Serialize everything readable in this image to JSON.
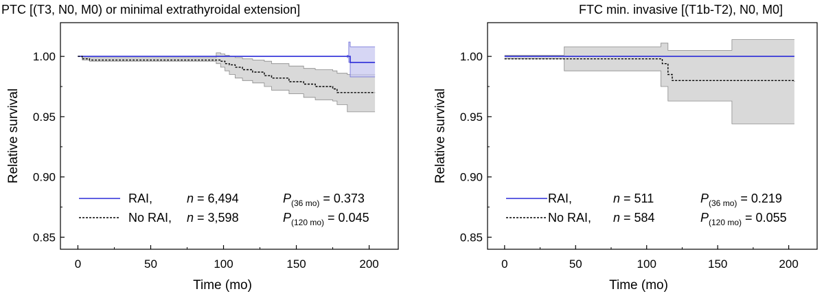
{
  "chart_data": [
    {
      "type": "line",
      "title": "PTC [(T3, N0, M0) or minimal extrathyroidal extension]",
      "xlabel": "Time (mo)",
      "ylabel": "Relative survival",
      "xlim": [
        -12,
        220
      ],
      "ylim": [
        0.84,
        1.028
      ],
      "xticks": [
        "0",
        "50",
        "100",
        "150",
        "200"
      ],
      "yticks": [
        "0.85",
        "0.90",
        "0.95",
        "1.00"
      ],
      "colors": {
        "rai": "#2b2bd8",
        "rai_band": "#c8c8f0",
        "norai": "#000000",
        "norai_band": "#d9d9d9"
      },
      "series": [
        {
          "name": "RAI",
          "style": "solid",
          "x": [
            0,
            186,
            187,
            204
          ],
          "y": [
            1.0,
            1.0,
            0.995,
            0.995
          ],
          "band": {
            "x": [
              0,
              185,
              185,
              186,
              187,
              204
            ],
            "lower": [
              1.0,
              1.0,
              0.999,
              0.995,
              0.983,
              0.983
            ],
            "upper": [
              1.0,
              1.0,
              1.001,
              1.012,
              1.008,
              1.008
            ]
          }
        },
        {
          "name": "No RAI",
          "style": "dashed",
          "x": [
            0,
            3,
            8,
            95,
            98,
            101,
            104,
            108,
            113,
            120,
            128,
            133,
            145,
            155,
            163,
            175,
            178,
            183,
            204
          ],
          "y": [
            1.0,
            0.998,
            0.997,
            0.997,
            0.996,
            0.994,
            0.993,
            0.991,
            0.989,
            0.987,
            0.984,
            0.982,
            0.979,
            0.977,
            0.975,
            0.973,
            0.97,
            0.97,
            0.97
          ],
          "band": {
            "x": [
              0,
              3,
              8,
              90,
              95,
              98,
              101,
              104,
              108,
              113,
              120,
              128,
              133,
              145,
              155,
              163,
              175,
              178,
              185,
              204
            ],
            "lower": [
              1.0,
              0.997,
              0.996,
              0.996,
              0.994,
              0.991,
              0.988,
              0.985,
              0.982,
              0.98,
              0.978,
              0.975,
              0.972,
              0.969,
              0.966,
              0.964,
              0.963,
              0.96,
              0.954,
              0.954
            ],
            "upper": [
              1.0,
              0.999,
              0.999,
              0.999,
              1.003,
              1.002,
              1.001,
              1.0,
              0.999,
              0.998,
              0.997,
              0.996,
              0.994,
              0.992,
              0.99,
              0.989,
              0.988,
              0.986,
              0.985,
              0.985
            ]
          }
        }
      ],
      "legend": [
        {
          "label": "RAI,",
          "n_label": "n",
          "n_value": " = 6,494",
          "p_label": "P",
          "p_sub": "(36 mo)",
          "p_value": " = 0.373"
        },
        {
          "label": "No RAI,",
          "n_label": "n",
          "n_value": " = 3,598",
          "p_label": "P",
          "p_sub": "(120 mo)",
          "p_value": " = 0.045"
        }
      ]
    },
    {
      "type": "line",
      "title": "FTC min. invasive [(T1b-T2), N0, M0]",
      "xlabel": "Time (mo)",
      "ylabel": "Relative survival",
      "xlim": [
        -12,
        220
      ],
      "ylim": [
        0.84,
        1.028
      ],
      "xticks": [
        "0",
        "50",
        "100",
        "150",
        "200"
      ],
      "yticks": [
        "0.85",
        "0.90",
        "0.95",
        "1.00"
      ],
      "colors": {
        "rai": "#2b2bd8",
        "rai_band": "#c8c8f0",
        "norai": "#000000",
        "norai_band": "#d9d9d9"
      },
      "series": [
        {
          "name": "RAI",
          "style": "solid",
          "x": [
            0,
            204
          ],
          "y": [
            1.0,
            1.0
          ],
          "band": null
        },
        {
          "name": "No RAI",
          "style": "dashed",
          "x": [
            0,
            108,
            111,
            115,
            118,
            204
          ],
          "y": [
            0.998,
            0.998,
            0.994,
            0.985,
            0.98,
            0.979
          ],
          "band": {
            "x": [
              0,
              40,
              42,
              108,
              110,
              115,
              118,
              158,
              160,
              204
            ],
            "lower": [
              0.998,
              0.998,
              0.988,
              0.988,
              0.975,
              0.963,
              0.963,
              0.963,
              0.944,
              0.944
            ],
            "upper": [
              1.001,
              1.001,
              1.008,
              1.008,
              1.011,
              1.005,
              1.005,
              1.005,
              1.014,
              1.014
            ]
          }
        }
      ],
      "legend": [
        {
          "label": "RAI,",
          "n_label": "n",
          "n_value": " = 511",
          "p_label": "P",
          "p_sub": "(36 mo)",
          "p_value": " = 0.219"
        },
        {
          "label": "No RAI,",
          "n_label": "n",
          "n_value": " = 584",
          "p_label": "P",
          "p_sub": "(120 mo)",
          "p_value": " = 0.055"
        }
      ]
    }
  ]
}
